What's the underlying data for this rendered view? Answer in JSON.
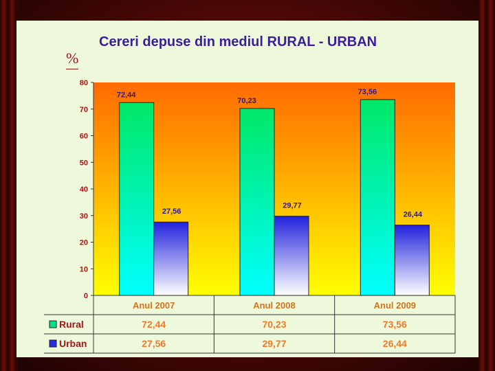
{
  "slide": {
    "title": "Cereri depuse din mediul RURAL - URBAN",
    "unit_label": "%"
  },
  "chart_data": {
    "type": "bar",
    "title": "Cereri depuse din mediul RURAL - URBAN",
    "ylabel": "%",
    "xlabel": "",
    "ylim": [
      0,
      80
    ],
    "yticks": [
      "0",
      "10",
      "20",
      "30",
      "40",
      "50",
      "60",
      "70",
      "80"
    ],
    "categories": [
      "Anul 2007",
      "Anul 2008",
      "Anul 2009"
    ],
    "series": [
      {
        "name": "Rural",
        "values": [
          72.44,
          70.23,
          73.56
        ],
        "labels": [
          "72,44",
          "70,23",
          "73,56"
        ],
        "color": "#00e87a"
      },
      {
        "name": "Urban",
        "values": [
          27.56,
          29.77,
          26.44
        ],
        "labels": [
          "27,56",
          "29,77",
          "26,44"
        ],
        "color": "#2a2ae0"
      }
    ],
    "data_table": true,
    "legend": "data-table",
    "grid": false
  },
  "colors": {
    "plot_top": "#ff6a00",
    "plot_bottom": "#ffff00",
    "title": "#3b1d9e",
    "tick": "#b01010"
  }
}
